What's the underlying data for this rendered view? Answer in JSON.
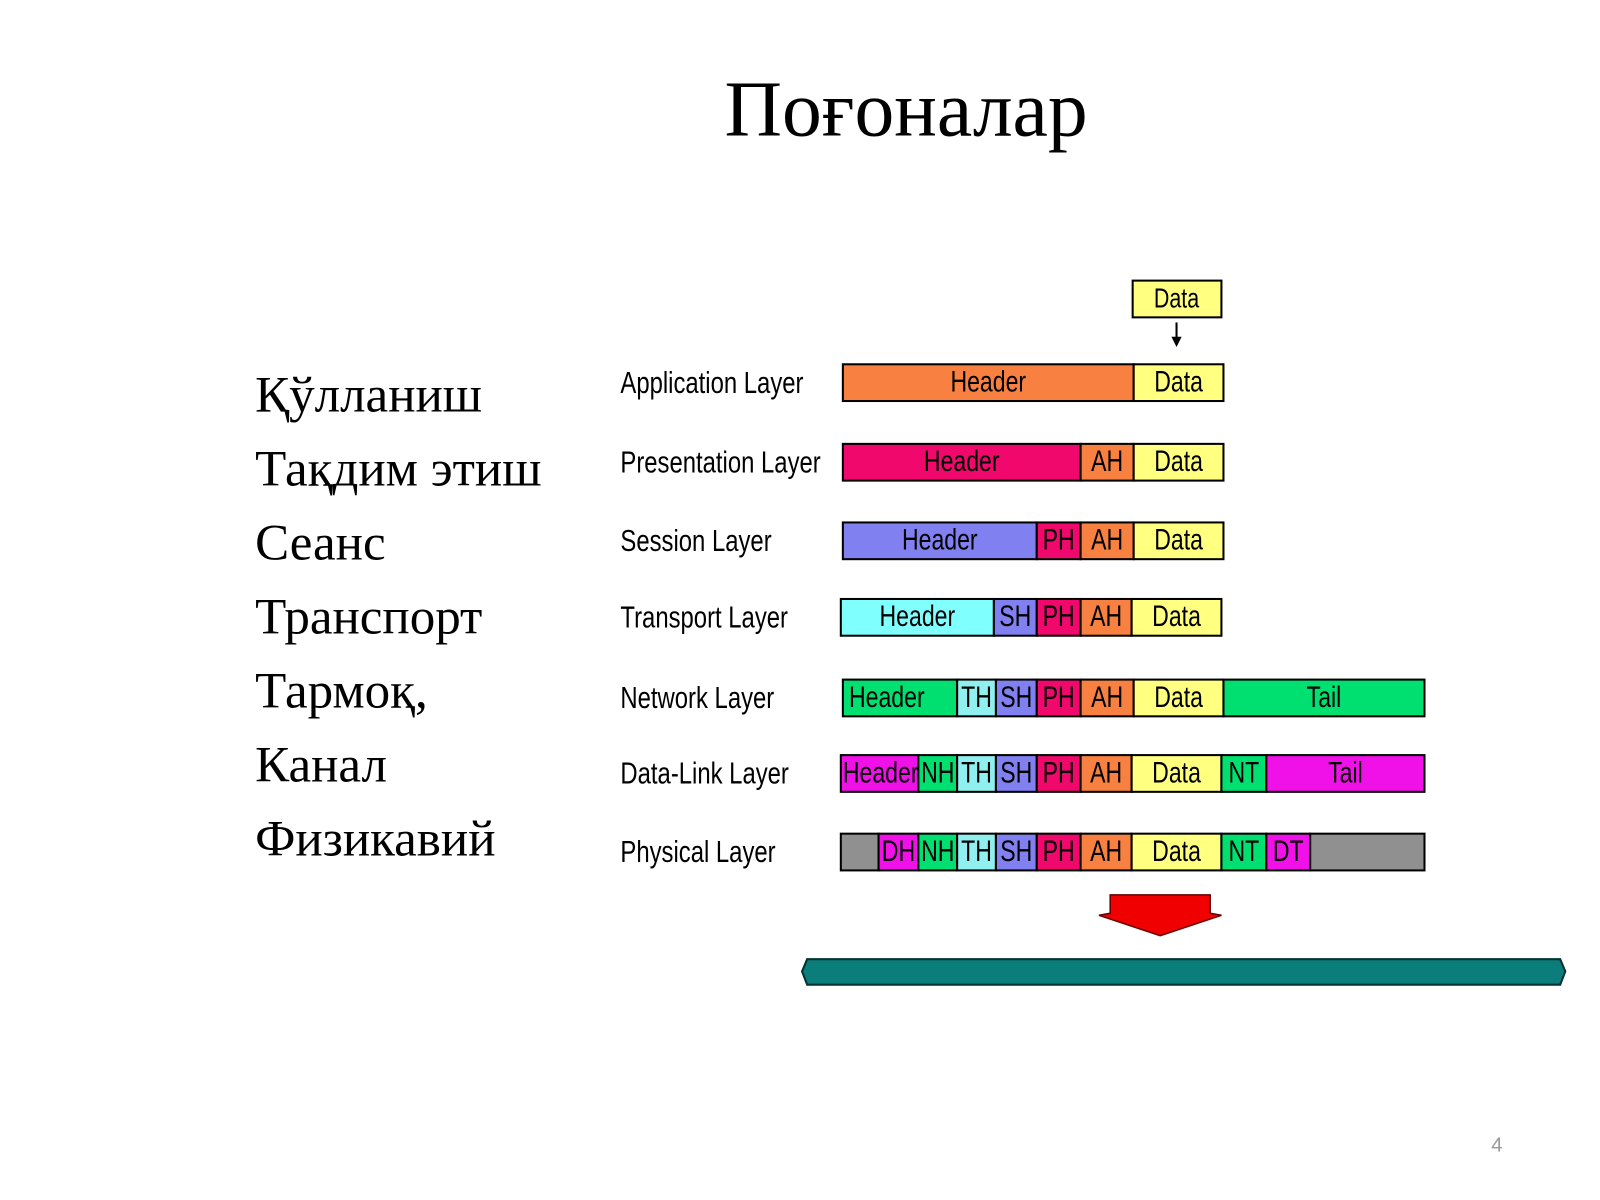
{
  "title": "Поғоналар",
  "local_names": [
    "Қўлланиш",
    "Тақдим этиш",
    "Сеанс",
    "Транспорт",
    "Тармоқ,",
    "Канал",
    "Физикавий"
  ],
  "top_data": "Data",
  "layers": [
    {
      "name": "Application Layer",
      "segments": [
        "Header",
        "Data"
      ]
    },
    {
      "name": "Presentation Layer",
      "segments": [
        "Header",
        "AH",
        "Data"
      ]
    },
    {
      "name": "Session Layer",
      "segments": [
        "Header",
        "PH",
        "AH",
        "Data"
      ]
    },
    {
      "name": "Transport Layer",
      "segments": [
        "Header",
        "SH",
        "PH",
        "AH",
        "Data"
      ]
    },
    {
      "name": "Network Layer",
      "segments": [
        "Header",
        "TH",
        "SH",
        "PH",
        "AH",
        "Data",
        "Tail"
      ]
    },
    {
      "name": "Data-Link Layer",
      "segments": [
        "Header",
        "NH",
        "TH",
        "SH",
        "PH",
        "AH",
        "Data",
        "NT",
        "Tail"
      ]
    },
    {
      "name": "Physical Layer",
      "segments": [
        "DH",
        "NH",
        "TH",
        "SH",
        "PH",
        "AH",
        "Data",
        "NT",
        "DT"
      ]
    }
  ],
  "page_number": "4"
}
